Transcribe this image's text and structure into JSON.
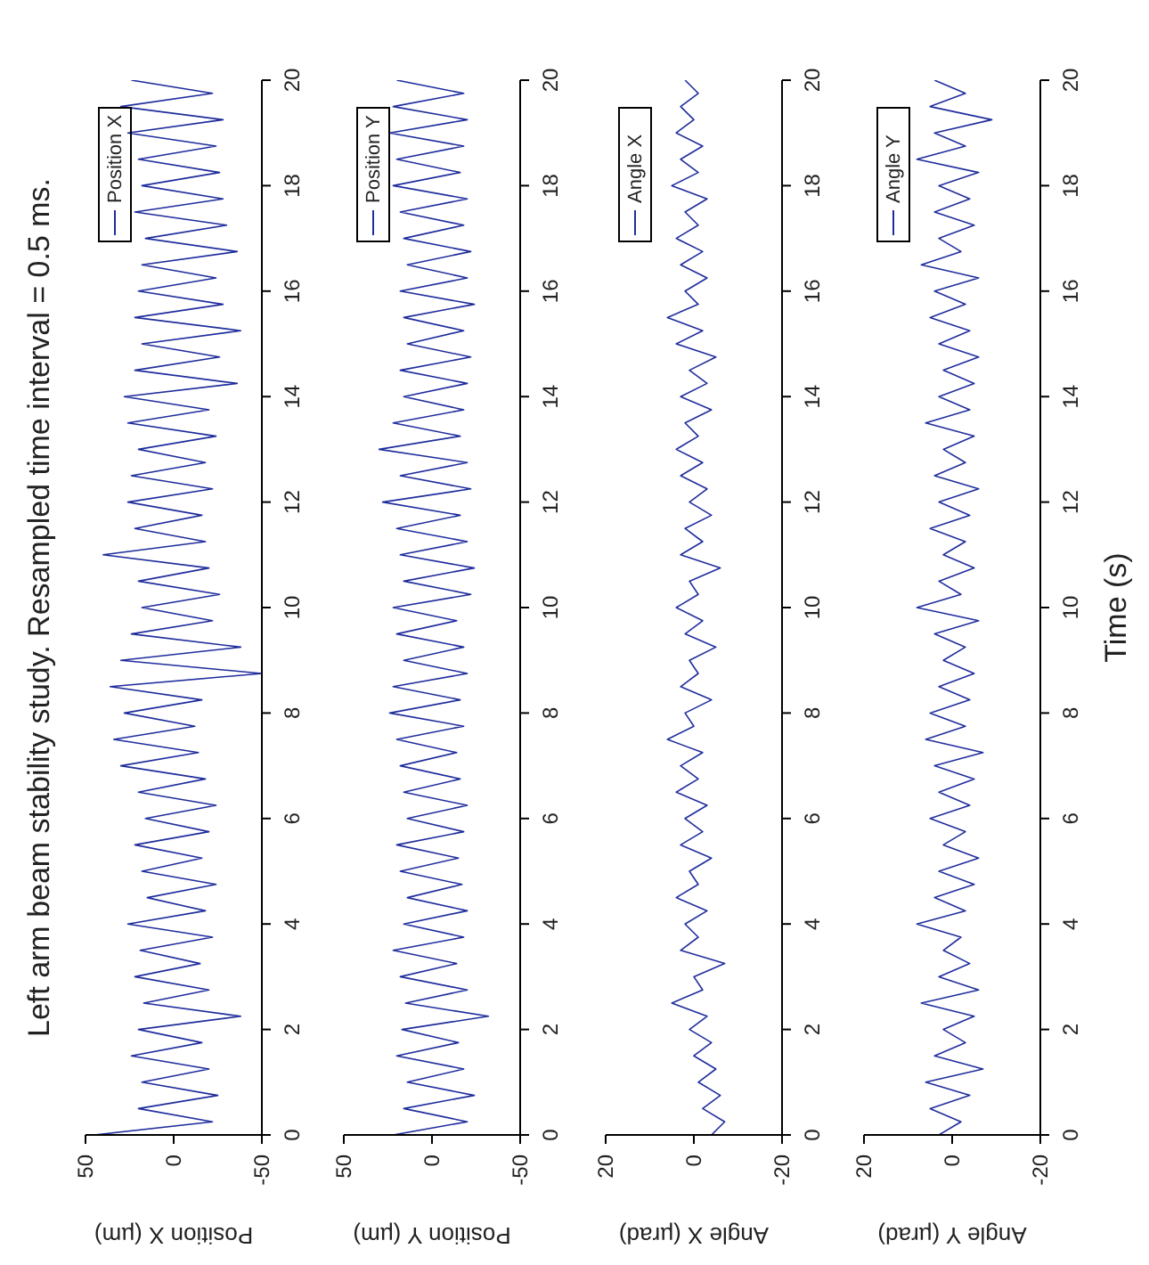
{
  "chart_data": [
    {
      "type": "line",
      "title": "Left arm beam stability study. Resampled time interval = 0.5 ms.",
      "xlabel": "Position X (µm)",
      "legend": "top left",
      "marker": "none",
      "line_style": "solid",
      "ylim": [
        0,
        20
      ],
      "yticks": [
        0,
        2,
        4,
        6,
        8,
        10,
        12,
        14,
        16,
        18,
        20
      ],
      "xlim": [
        50,
        -50
      ],
      "xticks": [
        50,
        0,
        -50
      ],
      "series": [
        {
          "name": "Position X",
          "color": "#1f2d9c",
          "x": [
            45,
            -22,
            20,
            -25,
            18,
            -20,
            24,
            -16,
            20,
            -38,
            17,
            -20,
            22,
            -15,
            19,
            -22,
            26,
            -18,
            15,
            -24,
            18,
            -16,
            22,
            -20,
            16,
            -24,
            20,
            -18,
            30,
            -14,
            34,
            -12,
            28,
            -16,
            36,
            -50,
            30,
            -38,
            24,
            -22,
            18,
            -26,
            20,
            -20,
            40,
            -18,
            22,
            -16,
            26,
            -22,
            24,
            -18,
            20,
            -24,
            26,
            -20,
            28,
            -36,
            22,
            -26,
            18,
            -38,
            22,
            -28,
            20,
            -24,
            18,
            -36,
            16,
            -30,
            22,
            -28,
            18,
            -26,
            20,
            -24,
            26,
            -28,
            30,
            -22,
            24
          ],
          "values": [
            0,
            0.25,
            0.5,
            0.75,
            1,
            1.25,
            1.5,
            1.75,
            2,
            2.25,
            2.5,
            2.75,
            3,
            3.25,
            3.5,
            3.75,
            4,
            4.25,
            4.5,
            4.75,
            5,
            5.25,
            5.5,
            5.75,
            6,
            6.25,
            6.5,
            6.75,
            7,
            7.25,
            7.5,
            7.75,
            8,
            8.25,
            8.5,
            8.75,
            9,
            9.25,
            9.5,
            9.75,
            10,
            10.25,
            10.5,
            10.75,
            11,
            11.25,
            11.5,
            11.75,
            12,
            12.25,
            12.5,
            12.75,
            13,
            13.25,
            13.5,
            13.75,
            14,
            14.25,
            14.5,
            14.75,
            15,
            15.25,
            15.5,
            15.75,
            16,
            16.25,
            16.5,
            16.75,
            17,
            17.25,
            17.5,
            17.75,
            18,
            18.25,
            18.5,
            18.75,
            19,
            19.25,
            19.5,
            19.75,
            20
          ]
        }
      ]
    },
    {
      "type": "line",
      "xlabel": "Position Y (µm)",
      "legend": "top left",
      "marker": "none",
      "line_style": "solid",
      "ylim": [
        0,
        20
      ],
      "yticks": [
        0,
        2,
        4,
        6,
        8,
        10,
        12,
        14,
        16,
        18,
        20
      ],
      "xlim": [
        50,
        -50
      ],
      "xticks": [
        50,
        0,
        -50
      ],
      "series": [
        {
          "name": "Position Y",
          "color": "#1f2d9c",
          "x": [
            22,
            -20,
            16,
            -24,
            14,
            -18,
            20,
            -15,
            17,
            -32,
            15,
            -20,
            18,
            -14,
            22,
            -18,
            16,
            -20,
            14,
            -17,
            18,
            -15,
            20,
            -18,
            14,
            -20,
            16,
            -16,
            18,
            -14,
            20,
            -18,
            24,
            -16,
            22,
            -20,
            16,
            -18,
            20,
            -14,
            22,
            -22,
            16,
            -24,
            18,
            -20,
            20,
            -16,
            28,
            -22,
            18,
            -20,
            30,
            -16,
            22,
            -18,
            16,
            -20,
            18,
            -22,
            14,
            -18,
            16,
            -24,
            18,
            -20,
            14,
            -22,
            16,
            -18,
            18,
            -20,
            22,
            -16,
            20,
            -18,
            24,
            -20,
            22,
            -18,
            20
          ],
          "values": [
            0,
            0.25,
            0.5,
            0.75,
            1,
            1.25,
            1.5,
            1.75,
            2,
            2.25,
            2.5,
            2.75,
            3,
            3.25,
            3.5,
            3.75,
            4,
            4.25,
            4.5,
            4.75,
            5,
            5.25,
            5.5,
            5.75,
            6,
            6.25,
            6.5,
            6.75,
            7,
            7.25,
            7.5,
            7.75,
            8,
            8.25,
            8.5,
            8.75,
            9,
            9.25,
            9.5,
            9.75,
            10,
            10.25,
            10.5,
            10.75,
            11,
            11.25,
            11.5,
            11.75,
            12,
            12.25,
            12.5,
            12.75,
            13,
            13.25,
            13.5,
            13.75,
            14,
            14.25,
            14.5,
            14.75,
            15,
            15.25,
            15.5,
            15.75,
            16,
            16.25,
            16.5,
            16.75,
            17,
            17.25,
            17.5,
            17.75,
            18,
            18.25,
            18.5,
            18.75,
            19,
            19.25,
            19.5,
            19.75,
            20
          ]
        }
      ]
    },
    {
      "type": "line",
      "xlabel": "Angle X (µrad)",
      "legend": "top left",
      "marker": "none",
      "line_style": "solid",
      "ylim": [
        0,
        20
      ],
      "yticks": [
        0,
        2,
        4,
        6,
        8,
        10,
        12,
        14,
        16,
        18,
        20
      ],
      "xlim": [
        20,
        -20
      ],
      "xticks": [
        20,
        0,
        -20
      ],
      "series": [
        {
          "name": "Angle X",
          "color": "#1f2d9c",
          "x": [
            -4,
            -7,
            -2,
            -6,
            -1,
            -5,
            0,
            -4,
            1,
            -3,
            5,
            -2,
            0,
            -7,
            3,
            -1,
            2,
            -3,
            4,
            -1,
            1,
            -4,
            3,
            -2,
            2,
            -3,
            4,
            -1,
            3,
            -2,
            6,
            0,
            2,
            -4,
            3,
            -1,
            1,
            -5,
            2,
            -2,
            4,
            -1,
            1,
            -6,
            3,
            -2,
            2,
            -4,
            1,
            -3,
            3,
            -2,
            4,
            -1,
            2,
            -4,
            3,
            -3,
            1,
            -5,
            4,
            -2,
            6,
            -1,
            2,
            -3,
            3,
            -2,
            4,
            -1,
            2,
            -3,
            5,
            -1,
            3,
            -2,
            4,
            0,
            3,
            -1,
            2
          ],
          "values": [
            0,
            0.25,
            0.5,
            0.75,
            1,
            1.25,
            1.5,
            1.75,
            2,
            2.25,
            2.5,
            2.75,
            3,
            3.25,
            3.5,
            3.75,
            4,
            4.25,
            4.5,
            4.75,
            5,
            5.25,
            5.5,
            5.75,
            6,
            6.25,
            6.5,
            6.75,
            7,
            7.25,
            7.5,
            7.75,
            8,
            8.25,
            8.5,
            8.75,
            9,
            9.25,
            9.5,
            9.75,
            10,
            10.25,
            10.5,
            10.75,
            11,
            11.25,
            11.5,
            11.75,
            12,
            12.25,
            12.5,
            12.75,
            13,
            13.25,
            13.5,
            13.75,
            14,
            14.25,
            14.5,
            14.75,
            15,
            15.25,
            15.5,
            15.75,
            16,
            16.25,
            16.5,
            16.75,
            17,
            17.25,
            17.5,
            17.75,
            18,
            18.25,
            18.5,
            18.75,
            19,
            19.25,
            19.5,
            19.75,
            20
          ]
        }
      ]
    },
    {
      "type": "line",
      "xlabel": "Angle Y (µrad)",
      "ylabel": "Time (s)",
      "legend": "top left",
      "marker": "none",
      "line_style": "solid",
      "ylim": [
        0,
        20
      ],
      "yticks": [
        0,
        2,
        4,
        6,
        8,
        10,
        12,
        14,
        16,
        18,
        20
      ],
      "xlim": [
        20,
        -20
      ],
      "xticks": [
        20,
        0,
        -20
      ],
      "series": [
        {
          "name": "Angle Y",
          "color": "#1f2d9c",
          "x": [
            3,
            -2,
            5,
            -4,
            6,
            -7,
            4,
            -3,
            2,
            -5,
            7,
            -6,
            3,
            -4,
            2,
            -2,
            8,
            -3,
            4,
            -5,
            3,
            -6,
            2,
            -3,
            5,
            -4,
            3,
            -5,
            4,
            -7,
            6,
            -3,
            5,
            -4,
            3,
            -5,
            2,
            -3,
            4,
            -6,
            8,
            -2,
            3,
            -5,
            2,
            -3,
            5,
            -4,
            3,
            -6,
            4,
            -3,
            2,
            -5,
            6,
            -4,
            3,
            -5,
            2,
            -6,
            3,
            -4,
            5,
            -3,
            4,
            -6,
            7,
            -2,
            3,
            -5,
            4,
            -4,
            3,
            -6,
            8,
            -3,
            4,
            -9,
            5,
            -3,
            4
          ],
          "values": [
            0,
            0.25,
            0.5,
            0.75,
            1,
            1.25,
            1.5,
            1.75,
            2,
            2.25,
            2.5,
            2.75,
            3,
            3.25,
            3.5,
            3.75,
            4,
            4.25,
            4.5,
            4.75,
            5,
            5.25,
            5.5,
            5.75,
            6,
            6.25,
            6.5,
            6.75,
            7,
            7.25,
            7.5,
            7.75,
            8,
            8.25,
            8.5,
            8.75,
            9,
            9.25,
            9.5,
            9.75,
            10,
            10.25,
            10.5,
            10.75,
            11,
            11.25,
            11.5,
            11.75,
            12,
            12.25,
            12.5,
            12.75,
            13,
            13.25,
            13.5,
            13.75,
            14,
            14.25,
            14.5,
            14.75,
            15,
            15.25,
            15.5,
            15.75,
            16,
            16.25,
            16.5,
            16.75,
            17,
            17.25,
            17.5,
            17.75,
            18,
            18.25,
            18.5,
            18.75,
            19,
            19.25,
            19.5,
            19.75,
            20
          ]
        }
      ]
    }
  ]
}
